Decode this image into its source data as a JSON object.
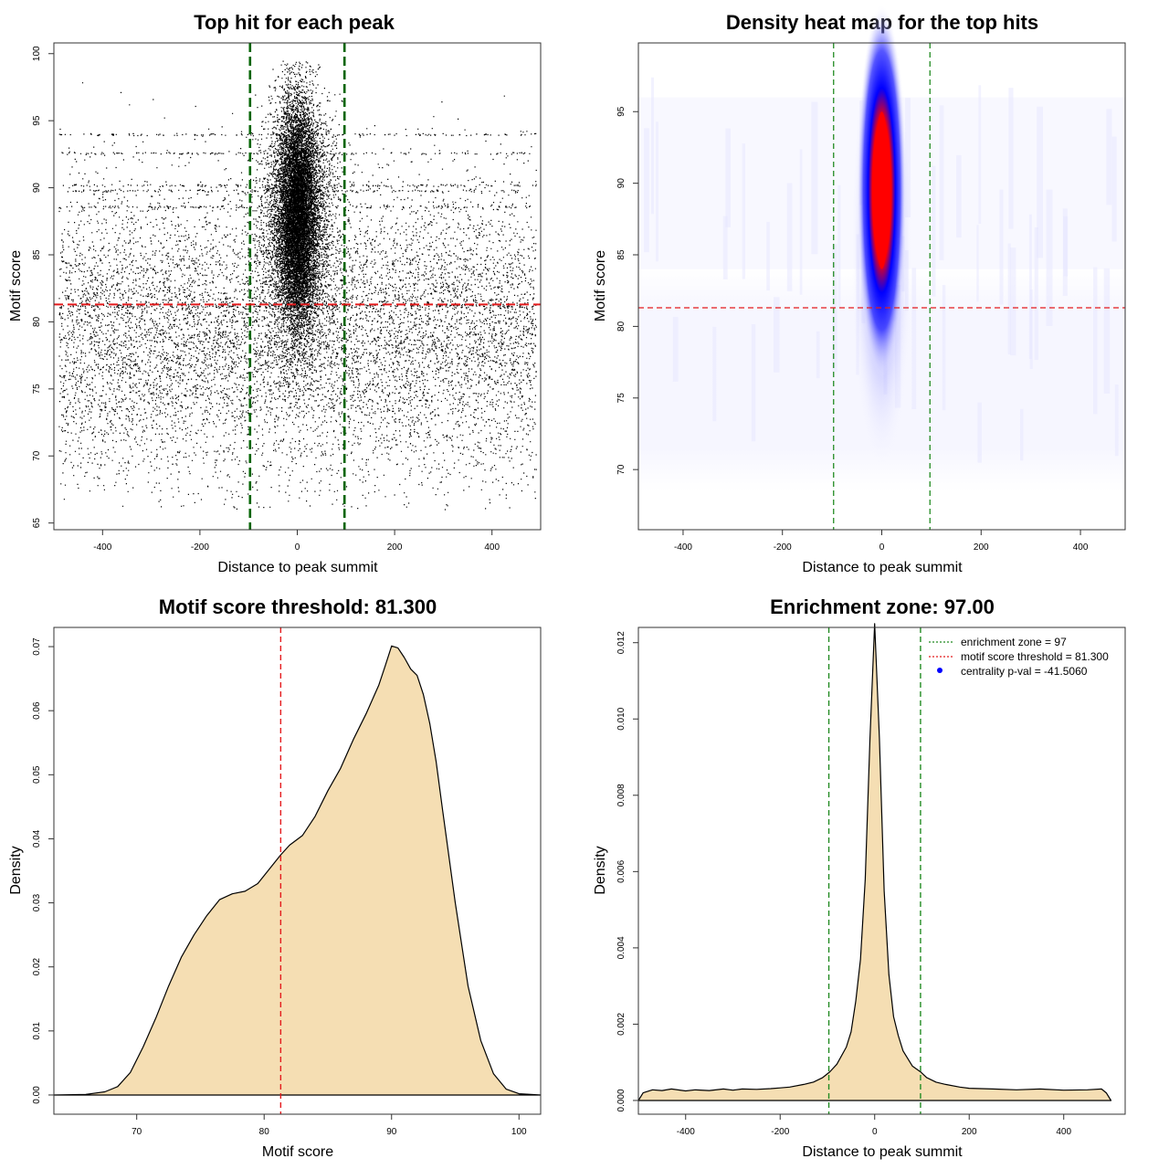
{
  "chart_data": [
    {
      "panel": "scatter",
      "type": "scatter",
      "title": "Top hit for each peak",
      "xlabel": "Distance to peak summit",
      "ylabel": "Motif score",
      "xlim": [
        -500,
        500
      ],
      "ylim": [
        64.5,
        100.8
      ],
      "xticks": [
        -400,
        -200,
        0,
        200,
        400
      ],
      "yticks": [
        65,
        70,
        75,
        80,
        85,
        90,
        95,
        100
      ],
      "point_color": "#000000",
      "points_summary": {
        "total_points_approx": 30000,
        "background": {
          "x_range": [
            -490,
            490
          ],
          "score_range": [
            66,
            98
          ],
          "score_mean": 79
        },
        "central_cluster": {
          "x_center": 0,
          "x_sd": 20,
          "score_range": [
            70,
            99.5
          ],
          "score_mean": 88
        }
      },
      "vlines": [
        -97,
        97
      ],
      "vline_color": "#006400",
      "hline": 81.3,
      "hline_color": "#e41a1c"
    },
    {
      "panel": "heatmap",
      "type": "heatmap",
      "title": "Density heat map for the top hits",
      "xlabel": "Distance to peak summit",
      "ylabel": "Motif score",
      "xlim": [
        -490,
        490
      ],
      "ylim": [
        65.8,
        99.8
      ],
      "xticks": [
        -400,
        -200,
        0,
        200,
        400
      ],
      "yticks": [
        70,
        75,
        80,
        85,
        90,
        95
      ],
      "color_scale": [
        "#ffffff",
        "#0000ff",
        "#ff0000"
      ],
      "density_peak": {
        "x": 0,
        "y": 89.5
      },
      "vlines": [
        -97,
        97
      ],
      "vline_color": "#228b22",
      "hline": 81.3,
      "hline_color": "#e41a1c"
    },
    {
      "panel": "score_density",
      "type": "area",
      "title": "Motif score threshold: 81.300",
      "xlabel": "Motif score",
      "ylabel": "Density",
      "xlim": [
        63.5,
        101.7
      ],
      "ylim": [
        -0.003,
        0.073
      ],
      "xticks": [
        70,
        80,
        90,
        100
      ],
      "yticks": [
        0.0,
        0.01,
        0.02,
        0.03,
        0.04,
        0.05,
        0.06,
        0.07
      ],
      "ytick_labels": [
        "0.00",
        "0.01",
        "0.02",
        "0.03",
        "0.04",
        "0.05",
        "0.06",
        "0.07"
      ],
      "x": [
        63.5,
        66,
        67.5,
        68.5,
        69.5,
        70.5,
        71.5,
        72.5,
        73.5,
        74.5,
        75.5,
        76.5,
        77.5,
        78.5,
        79.5,
        80.5,
        81.3,
        82,
        83,
        84,
        85,
        86,
        87,
        88,
        89,
        89.5,
        90,
        90.5,
        91,
        91.5,
        92,
        92.5,
        93,
        93.5,
        94,
        95,
        96,
        97,
        98,
        99,
        100,
        101.7
      ],
      "y": [
        0,
        0.0001,
        0.0005,
        0.0013,
        0.0035,
        0.0075,
        0.012,
        0.017,
        0.0215,
        0.025,
        0.028,
        0.0305,
        0.0314,
        0.0318,
        0.033,
        0.0355,
        0.0375,
        0.039,
        0.0405,
        0.0435,
        0.0475,
        0.051,
        0.0555,
        0.0595,
        0.064,
        0.067,
        0.0701,
        0.0698,
        0.0683,
        0.0665,
        0.0655,
        0.0625,
        0.058,
        0.052,
        0.0445,
        0.03,
        0.017,
        0.0085,
        0.0033,
        0.0009,
        0.0002,
        0
      ],
      "fill_color": "#f5deb3",
      "vline": 81.3,
      "vline_color": "#e41a1c"
    },
    {
      "panel": "distance_density",
      "type": "area",
      "title": "Enrichment zone: 97.00",
      "xlabel": "Distance to peak summit",
      "ylabel": "Density",
      "xlim": [
        -500,
        530
      ],
      "ylim": [
        -0.00036,
        0.0124
      ],
      "xticks": [
        -400,
        -200,
        0,
        200,
        400
      ],
      "yticks": [
        0.0,
        0.002,
        0.004,
        0.006,
        0.008,
        0.01,
        0.012
      ],
      "ytick_labels": [
        "0.000",
        "0.002",
        "0.004",
        "0.006",
        "0.008",
        "0.010",
        "0.012"
      ],
      "x": [
        -500,
        -490,
        -470,
        -450,
        -430,
        -400,
        -380,
        -350,
        -320,
        -300,
        -280,
        -250,
        -220,
        -200,
        -180,
        -150,
        -130,
        -110,
        -95,
        -80,
        -60,
        -50,
        -40,
        -30,
        -20,
        -10,
        0,
        10,
        20,
        30,
        40,
        50,
        60,
        80,
        97,
        110,
        130,
        150,
        180,
        200,
        250,
        300,
        350,
        400,
        450,
        480,
        490,
        500
      ],
      "y": [
        0,
        0.0002,
        0.00028,
        0.00026,
        0.0003,
        0.00025,
        0.00028,
        0.00026,
        0.0003,
        0.00027,
        0.0003,
        0.00029,
        0.00031,
        0.00033,
        0.00035,
        0.00042,
        0.00048,
        0.0006,
        0.00075,
        0.00095,
        0.0014,
        0.0018,
        0.0026,
        0.0037,
        0.0058,
        0.0095,
        0.0125,
        0.0095,
        0.0055,
        0.0033,
        0.0022,
        0.0017,
        0.0013,
        0.0009,
        0.00075,
        0.0006,
        0.00048,
        0.00042,
        0.00035,
        0.00032,
        0.0003,
        0.00028,
        0.0003,
        0.00027,
        0.00028,
        0.0003,
        0.0002,
        0
      ],
      "fill_color": "#f5deb3",
      "vlines": [
        -97,
        97
      ],
      "vline_color": "#228b22",
      "legend": {
        "position": "top-right",
        "items": [
          {
            "label": "enrichment zone = 97",
            "color": "#228b22",
            "symbol": "dotted-line"
          },
          {
            "label": "motif score threshold = 81.300",
            "color": "#e41a1c",
            "symbol": "dotted-line"
          },
          {
            "label": "centrality p-val = -41.5060",
            "color": "#0000ff",
            "symbol": "dot"
          }
        ]
      }
    }
  ]
}
